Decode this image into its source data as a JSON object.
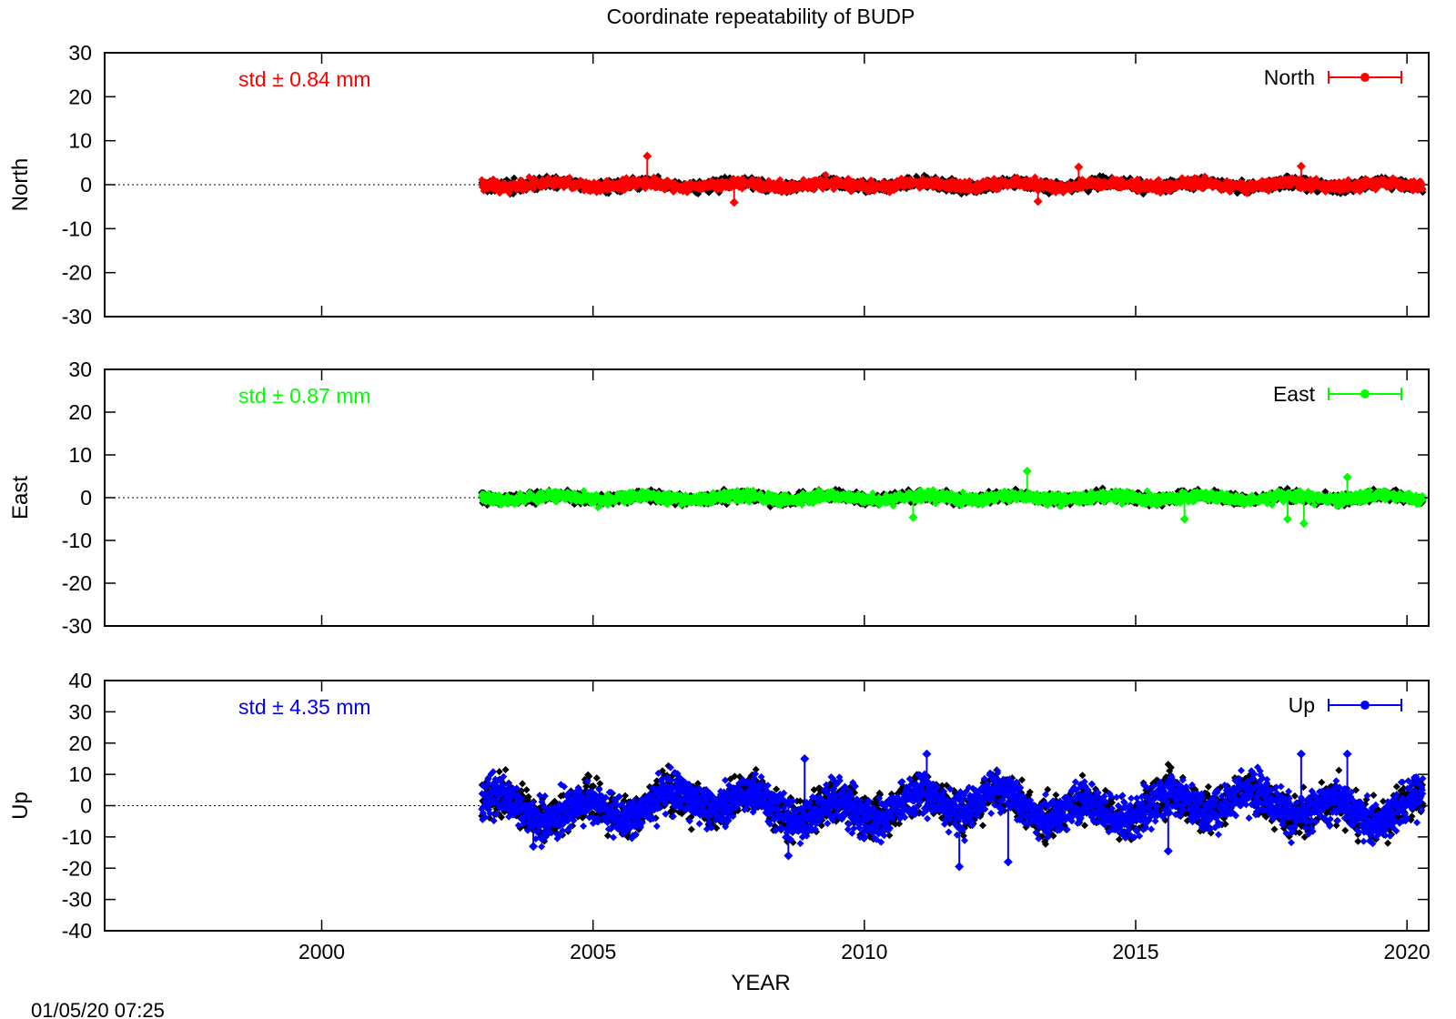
{
  "chart_data": {
    "type": "scatter",
    "title": "Coordinate repeatability of BUDP",
    "xlabel": "YEAR",
    "xlim": [
      1996,
      2020.4
    ],
    "xticks": [
      2000,
      2005,
      2010,
      2015,
      2020
    ],
    "timestamp": "01/05/20 07:25",
    "data_start_year": 2002.95,
    "data_end_year": 2020.3,
    "panels": [
      {
        "name": "North",
        "ylabel": "North",
        "ylim": [
          -30,
          30
        ],
        "yticks": [
          -30,
          -20,
          -10,
          0,
          10,
          20,
          30
        ],
        "color": "#ff0000",
        "residual_color": "#000000",
        "std_label": "std ± 0.84 mm",
        "legend": "North",
        "std": 0.84,
        "notable_points": [
          {
            "x": 2006.0,
            "y": 6.5
          },
          {
            "x": 2013.95,
            "y": 4.0
          },
          {
            "x": 2018.05,
            "y": 4.2
          },
          {
            "x": 2007.6,
            "y": -4.0
          },
          {
            "x": 2013.2,
            "y": -3.8
          }
        ]
      },
      {
        "name": "East",
        "ylabel": "East",
        "ylim": [
          -30,
          30
        ],
        "yticks": [
          -30,
          -20,
          -10,
          0,
          10,
          20,
          30
        ],
        "color": "#00ff00",
        "residual_color": "#000000",
        "std_label": "std ± 0.87 mm",
        "legend": "East",
        "std": 0.87,
        "notable_points": [
          {
            "x": 2013.0,
            "y": 6.2
          },
          {
            "x": 2018.9,
            "y": 4.8
          },
          {
            "x": 2010.9,
            "y": -4.6
          },
          {
            "x": 2015.9,
            "y": -5.0
          },
          {
            "x": 2018.1,
            "y": -6.0
          },
          {
            "x": 2017.8,
            "y": -5.0
          }
        ]
      },
      {
        "name": "Up",
        "ylabel": "Up",
        "ylim": [
          -40,
          40
        ],
        "yticks": [
          -40,
          -30,
          -20,
          -10,
          0,
          10,
          20,
          30,
          40
        ],
        "color": "#0000ff",
        "residual_color": "#000000",
        "std_label": "std ± 4.35 mm",
        "legend": "Up",
        "std": 4.35,
        "notable_points": [
          {
            "x": 2011.15,
            "y": 16.5
          },
          {
            "x": 2018.05,
            "y": 16.5
          },
          {
            "x": 2018.9,
            "y": 16.5
          },
          {
            "x": 2008.9,
            "y": 15.0
          },
          {
            "x": 2011.75,
            "y": -19.5
          },
          {
            "x": 2012.65,
            "y": -18.0
          },
          {
            "x": 2008.6,
            "y": -16.0
          },
          {
            "x": 2003.9,
            "y": -13.0
          },
          {
            "x": 2015.6,
            "y": -14.5
          }
        ]
      }
    ]
  }
}
